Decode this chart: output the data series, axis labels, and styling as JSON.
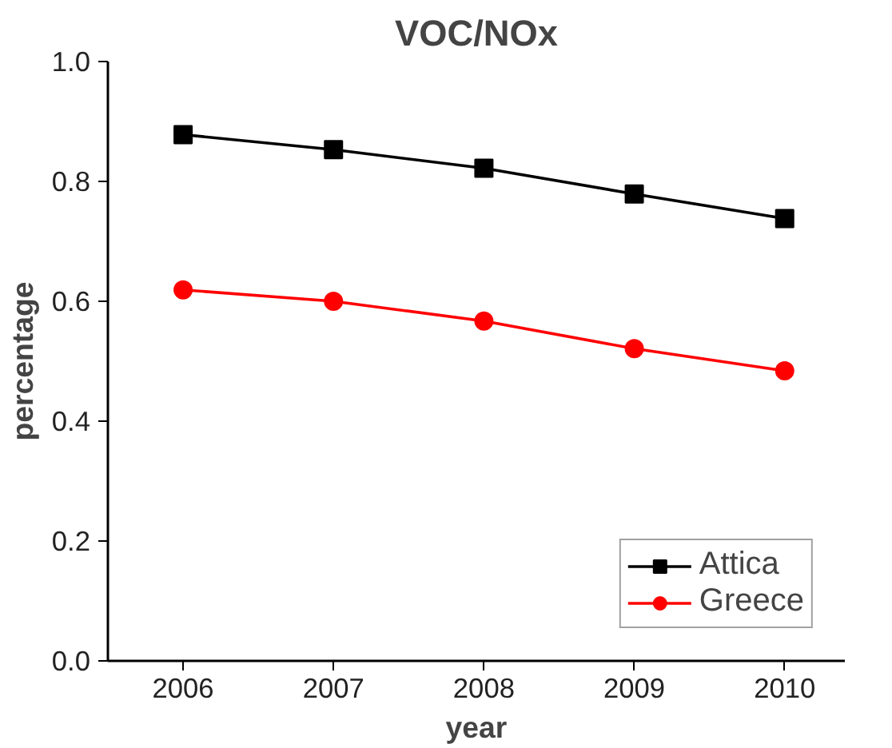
{
  "chart_data": {
    "type": "line",
    "title": "VOC/NOx",
    "xlabel": "year",
    "ylabel": "percentage",
    "x": [
      2006,
      2007,
      2008,
      2009,
      2010
    ],
    "series": [
      {
        "name": "Attica",
        "color": "#000000",
        "marker": "square",
        "values": [
          0.878,
          0.853,
          0.822,
          0.779,
          0.738
        ]
      },
      {
        "name": "Greece",
        "color": "#ff0000",
        "marker": "circle",
        "values": [
          0.619,
          0.6,
          0.567,
          0.521,
          0.484
        ]
      }
    ],
    "xlim": [
      2005.5,
      2010.4
    ],
    "xticks": [
      2006,
      2007,
      2008,
      2009,
      2010
    ],
    "ylim": [
      0.0,
      1.0
    ],
    "yticks": [
      {
        "value": 0,
        "label": "0.0"
      },
      {
        "value": 0.2,
        "label": "0.2"
      },
      {
        "value": 0.4,
        "label": "0.4"
      },
      {
        "value": 0.6,
        "label": "0.6"
      },
      {
        "value": 0.8,
        "label": "0.8"
      },
      {
        "value": 1.0,
        "label": "1.0"
      }
    ],
    "grid": false,
    "legend": "bottom right",
    "line_style": "solid"
  }
}
